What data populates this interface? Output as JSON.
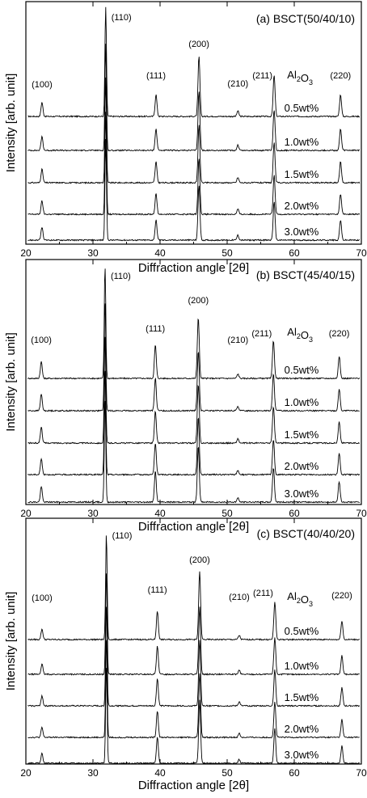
{
  "chart_data": [
    {
      "type": "line",
      "title": "(a) BSCT(50/40/10)",
      "xlabel": "Diffraction angle [2θ]",
      "ylabel": "Intensity [arb. unit]",
      "xlim": [
        20,
        70
      ],
      "x_ticks": [
        20,
        30,
        40,
        50,
        60,
        70
      ],
      "group_label": "Al2O3",
      "series_labels": [
        "0.5wt%",
        "1.0wt%",
        "1.5wt%",
        "2.0wt%",
        "3.0wt%"
      ],
      "peak_labels": [
        "(100)",
        "(110)",
        "(111)",
        "(200)",
        "(210)",
        "(211)",
        "(220)"
      ],
      "peaks": [
        {
          "label": "(100)",
          "x": 22.4,
          "rel_intensity": 0.13
        },
        {
          "label": "(110)",
          "x": 31.9,
          "rel_intensity": 1.0
        },
        {
          "label": "(111)",
          "x": 39.4,
          "rel_intensity": 0.2
        },
        {
          "label": "(200)",
          "x": 45.8,
          "rel_intensity": 0.55
        },
        {
          "label": "(210)",
          "x": 51.6,
          "rel_intensity": 0.05
        },
        {
          "label": "(211)",
          "x": 57.0,
          "rel_intensity": 0.38
        },
        {
          "label": "(220)",
          "x": 66.9,
          "rel_intensity": 0.2
        }
      ]
    },
    {
      "type": "line",
      "title": "(b) BSCT(45/40/15)",
      "xlabel": "Diffraction angle [2θ]",
      "ylabel": "Intensity [arb. unit]",
      "xlim": [
        20,
        70
      ],
      "x_ticks": [
        20,
        30,
        40,
        50,
        60,
        70
      ],
      "group_label": "Al2O3",
      "series_labels": [
        "0.5wt%",
        "1.0wt%",
        "1.5wt%",
        "2.0wt%",
        "3.0wt%"
      ],
      "peak_labels": [
        "(100)",
        "(110)",
        "(111)",
        "(200)",
        "(210)",
        "(211)",
        "(220)"
      ],
      "peaks": [
        {
          "label": "(100)",
          "x": 22.3,
          "rel_intensity": 0.15
        },
        {
          "label": "(110)",
          "x": 31.8,
          "rel_intensity": 1.0
        },
        {
          "label": "(111)",
          "x": 39.3,
          "rel_intensity": 0.3
        },
        {
          "label": "(200)",
          "x": 45.7,
          "rel_intensity": 0.55
        },
        {
          "label": "(210)",
          "x": 51.6,
          "rel_intensity": 0.04
        },
        {
          "label": "(211)",
          "x": 56.9,
          "rel_intensity": 0.34
        },
        {
          "label": "(220)",
          "x": 66.7,
          "rel_intensity": 0.2
        }
      ]
    },
    {
      "type": "line",
      "title": "(c) BSCT(40/40/20)",
      "xlabel": "Diffraction angle [2θ]",
      "ylabel": "Intensity [arb. unit]",
      "xlim": [
        20,
        70
      ],
      "x_ticks": [
        20,
        30,
        40,
        50,
        60,
        70
      ],
      "group_label": "Al2O3",
      "series_labels": [
        "0.5wt%",
        "1.0wt%",
        "1.5wt%",
        "2.0wt%",
        "3.0wt%"
      ],
      "peak_labels": [
        "(100)",
        "(110)",
        "(111)",
        "(200)",
        "(210)",
        "(211)",
        "(220)"
      ],
      "peaks": [
        {
          "label": "(100)",
          "x": 22.4,
          "rel_intensity": 0.1
        },
        {
          "label": "(110)",
          "x": 32.0,
          "rel_intensity": 1.0
        },
        {
          "label": "(111)",
          "x": 39.6,
          "rel_intensity": 0.27
        },
        {
          "label": "(200)",
          "x": 45.9,
          "rel_intensity": 0.65
        },
        {
          "label": "(210)",
          "x": 51.8,
          "rel_intensity": 0.04
        },
        {
          "label": "(211)",
          "x": 57.1,
          "rel_intensity": 0.36
        },
        {
          "label": "(220)",
          "x": 67.1,
          "rel_intensity": 0.18
        }
      ]
    }
  ]
}
